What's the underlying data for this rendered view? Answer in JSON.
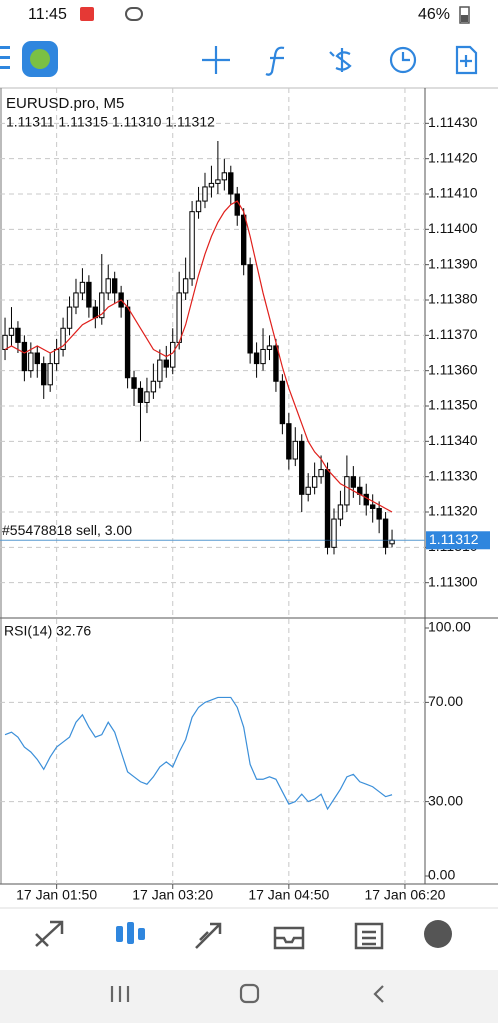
{
  "status_bar": {
    "time": "11:45",
    "battery": "46%"
  },
  "chart_data": {
    "type": "candlestick",
    "symbol": "EURUSD.pro, M5",
    "last_quote": "1.11311 1.11315 1.11310 1.11312",
    "candles": [
      [
        1.11366,
        1.11375,
        1.11363,
        1.1137
      ],
      [
        1.1137,
        1.11378,
        1.11367,
        1.11372
      ],
      [
        1.11372,
        1.11374,
        1.11365,
        1.11368
      ],
      [
        1.11368,
        1.1137,
        1.11357,
        1.1136
      ],
      [
        1.1136,
        1.11368,
        1.11358,
        1.11365
      ],
      [
        1.11365,
        1.11367,
        1.11358,
        1.11362
      ],
      [
        1.11362,
        1.11364,
        1.11352,
        1.11356
      ],
      [
        1.11356,
        1.11365,
        1.11354,
        1.11362
      ],
      [
        1.11362,
        1.11369,
        1.1136,
        1.11366
      ],
      [
        1.11366,
        1.11375,
        1.11364,
        1.11372
      ],
      [
        1.11372,
        1.11381,
        1.1137,
        1.11378
      ],
      [
        1.11378,
        1.11386,
        1.11376,
        1.11382
      ],
      [
        1.11382,
        1.11389,
        1.1138,
        1.11385
      ],
      [
        1.11385,
        1.11387,
        1.11375,
        1.11378
      ],
      [
        1.11378,
        1.1138,
        1.11372,
        1.11375
      ],
      [
        1.11375,
        1.11393,
        1.11373,
        1.11382
      ],
      [
        1.11382,
        1.1139,
        1.1138,
        1.11386
      ],
      [
        1.11386,
        1.11388,
        1.11379,
        1.11382
      ],
      [
        1.11382,
        1.11384,
        1.11375,
        1.11378
      ],
      [
        1.11378,
        1.1138,
        1.11355,
        1.11358
      ],
      [
        1.11358,
        1.1136,
        1.1135,
        1.11355
      ],
      [
        1.11355,
        1.11357,
        1.1134,
        1.11351
      ],
      [
        1.11351,
        1.11358,
        1.11348,
        1.11354
      ],
      [
        1.11354,
        1.11362,
        1.11352,
        1.11357
      ],
      [
        1.11357,
        1.11366,
        1.11355,
        1.11363
      ],
      [
        1.11363,
        1.11367,
        1.11358,
        1.11361
      ],
      [
        1.11361,
        1.11372,
        1.11359,
        1.11368
      ],
      [
        1.11368,
        1.11388,
        1.11366,
        1.11382
      ],
      [
        1.11382,
        1.11392,
        1.1138,
        1.11386
      ],
      [
        1.11386,
        1.11408,
        1.11384,
        1.11405
      ],
      [
        1.11405,
        1.11412,
        1.11403,
        1.11408
      ],
      [
        1.11408,
        1.11416,
        1.11406,
        1.11412
      ],
      [
        1.11412,
        1.11418,
        1.11409,
        1.11413
      ],
      [
        1.11413,
        1.11425,
        1.1141,
        1.11414
      ],
      [
        1.11414,
        1.1142,
        1.11411,
        1.11416
      ],
      [
        1.11416,
        1.11418,
        1.11407,
        1.1141
      ],
      [
        1.1141,
        1.11412,
        1.11401,
        1.11404
      ],
      [
        1.11404,
        1.11406,
        1.11387,
        1.1139
      ],
      [
        1.1139,
        1.11392,
        1.11362,
        1.11365
      ],
      [
        1.11365,
        1.11368,
        1.11358,
        1.11362
      ],
      [
        1.11362,
        1.11372,
        1.1136,
        1.11366
      ],
      [
        1.11366,
        1.1137,
        1.11363,
        1.11367
      ],
      [
        1.11367,
        1.11369,
        1.11354,
        1.11357
      ],
      [
        1.11357,
        1.11359,
        1.11342,
        1.11345
      ],
      [
        1.11345,
        1.11348,
        1.11332,
        1.11335
      ],
      [
        1.11335,
        1.11344,
        1.11333,
        1.1134
      ],
      [
        1.1134,
        1.11342,
        1.1132,
        1.11325
      ],
      [
        1.11325,
        1.11331,
        1.11323,
        1.11327
      ],
      [
        1.11327,
        1.11334,
        1.11325,
        1.1133
      ],
      [
        1.1133,
        1.11336,
        1.11328,
        1.11332
      ],
      [
        1.11332,
        1.11334,
        1.11308,
        1.1131
      ],
      [
        1.1131,
        1.11321,
        1.11308,
        1.11318
      ],
      [
        1.11318,
        1.11326,
        1.11316,
        1.11322
      ],
      [
        1.11322,
        1.11336,
        1.1132,
        1.1133
      ],
      [
        1.1133,
        1.11333,
        1.11324,
        1.11327
      ],
      [
        1.11327,
        1.1133,
        1.11322,
        1.11325
      ],
      [
        1.11325,
        1.11328,
        1.11319,
        1.11322
      ],
      [
        1.11322,
        1.11325,
        1.11317,
        1.11321
      ],
      [
        1.11321,
        1.11323,
        1.11314,
        1.11318
      ],
      [
        1.11318,
        1.1132,
        1.11308,
        1.1131
      ],
      [
        1.11311,
        1.11315,
        1.1131,
        1.11312
      ]
    ],
    "ma": [
      1.11366,
      1.11367,
      1.11366,
      1.11365,
      1.11366,
      1.11367,
      1.11366,
      1.11365,
      1.11366,
      1.11367,
      1.11369,
      1.11371,
      1.11373,
      1.11374,
      1.11375,
      1.11376,
      1.11378,
      1.11379,
      1.1138,
      1.11378,
      1.11375,
      1.11372,
      1.11369,
      1.11366,
      1.11365,
      1.11364,
      1.11365,
      1.11368,
      1.11373,
      1.1138,
      1.11387,
      1.11393,
      1.11398,
      1.11402,
      1.11405,
      1.11407,
      1.11408,
      1.11405,
      1.11398,
      1.1139,
      1.11382,
      1.11375,
      1.11368,
      1.11361,
      1.11355,
      1.1135,
      1.11345,
      1.1134,
      1.11337,
      1.11335,
      1.11332,
      1.1133,
      1.11328,
      1.11327,
      1.11326,
      1.11325,
      1.11324,
      1.11323,
      1.11322,
      1.11321,
      1.1132
    ],
    "ma_color": "#e0201c",
    "up_color": "#ffffff",
    "down_color": "#000000",
    "xlim": [
      -0.78,
      65.11
    ],
    "ylim": [
      1.1129,
      1.1144
    ],
    "yticks": [
      {
        "value": 1.1143,
        "label": "1.11430"
      },
      {
        "value": 1.1142,
        "label": "1.11420"
      },
      {
        "value": 1.1141,
        "label": "1.11410"
      },
      {
        "value": 1.114,
        "label": "1.11400"
      },
      {
        "value": 1.1139,
        "label": "1.11390"
      },
      {
        "value": 1.1138,
        "label": "1.11380"
      },
      {
        "value": 1.1137,
        "label": "1.11370"
      },
      {
        "value": 1.1136,
        "label": "1.11360"
      },
      {
        "value": 1.1135,
        "label": "1.11350"
      },
      {
        "value": 1.1134,
        "label": "1.11340"
      },
      {
        "value": 1.1133,
        "label": "1.11330"
      },
      {
        "value": 1.1132,
        "label": "1.11320"
      },
      {
        "value": 1.1131,
        "label": "1.11310"
      },
      {
        "value": 1.113,
        "label": "1.11300"
      }
    ],
    "xticks": [
      {
        "value": 8,
        "label": "17 Jan 01:50"
      },
      {
        "value": 26,
        "label": "17 Jan 03:20"
      },
      {
        "value": 44,
        "label": "17 Jan 04:50"
      },
      {
        "value": 62,
        "label": "17 Jan 06:20"
      }
    ],
    "grid": true,
    "bid": 1.11312,
    "bid_color": "#2f86de",
    "order": {
      "label": "#55478818 sell, 3.00",
      "price": 1.11312
    }
  },
  "indicator": {
    "type": "line",
    "title": "RSI(14) 32.76",
    "values": [
      57,
      58,
      56,
      52,
      50,
      47,
      43,
      48,
      52,
      54,
      56,
      62,
      65,
      60,
      56,
      57,
      62,
      58,
      50,
      42,
      40,
      38,
      37,
      40,
      44,
      46,
      44,
      50,
      55,
      64,
      68,
      70,
      71,
      72,
      72,
      72,
      68,
      60,
      45,
      39,
      39,
      40,
      39,
      34,
      29,
      30,
      33,
      30,
      31,
      33,
      27,
      31,
      35,
      40,
      41,
      38,
      37,
      36,
      34,
      32,
      32.76
    ],
    "color": "#3b8fd9",
    "ylim": [
      0,
      100
    ],
    "yticks": [
      {
        "value": 100,
        "label": "100.00"
      },
      {
        "value": 70,
        "label": "70.00"
      },
      {
        "value": 30,
        "label": "30.00"
      },
      {
        "value": 0,
        "label": "0.00"
      }
    ]
  }
}
